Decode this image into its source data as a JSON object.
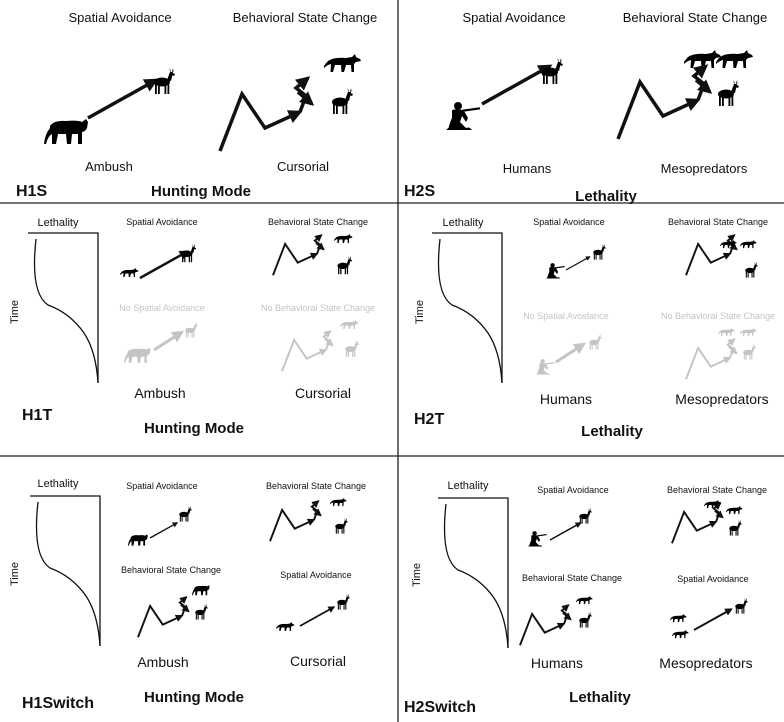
{
  "colors": {
    "ink": "#111111",
    "muted": "#c4c4c4",
    "divider": "#222222"
  },
  "panels": {
    "h1s": {
      "id": "H1S",
      "subtitle": "Hunting Mode",
      "left_heading": "Spatial Avoidance",
      "right_heading": "Behavioral State Change",
      "left_caption": "Ambush",
      "right_caption": "Cursorial"
    },
    "h2s": {
      "id": "H2S",
      "subtitle": "Lethality",
      "left_heading": "Spatial Avoidance",
      "right_heading": "Behavioral State Change",
      "left_caption": "Humans",
      "right_caption": "Mesopredators"
    },
    "h1t": {
      "id": "H1T",
      "subtitle": "Hunting Mode",
      "curve_top": "Lethality",
      "curve_side": "Time",
      "top_left": "Spatial Avoidance",
      "top_right": "Behavioral State Change",
      "bottom_left": "No Spatial Avoidance",
      "bottom_right": "No Behavioral State Change",
      "left_caption": "Ambush",
      "right_caption": "Cursorial"
    },
    "h2t": {
      "id": "H2T",
      "subtitle": "Lethality",
      "curve_top": "Lethality",
      "curve_side": "Time",
      "top_left": "Spatial Avoidance",
      "top_right": "Behavioral State Change",
      "bottom_left": "No Spatial Avoidance",
      "bottom_right": "No Behavioral State Change",
      "left_caption": "Humans",
      "right_caption": "Mesopredators"
    },
    "h1switch": {
      "id": "H1Switch",
      "subtitle": "Hunting Mode",
      "curve_top": "Lethality",
      "curve_side": "Time",
      "top_left": "Spatial Avoidance",
      "top_right": "Behavioral State Change",
      "bottom_left": "Behavioral State Change",
      "bottom_right": "Spatial Avoidance",
      "left_caption": "Ambush",
      "right_caption": "Cursorial"
    },
    "h2switch": {
      "id": "H2Switch",
      "subtitle": "Lethality",
      "curve_top": "Lethality",
      "curve_side": "Time",
      "top_left": "Spatial Avoidance",
      "top_right": "Behavioral State Change",
      "bottom_left": "Behavioral State Change",
      "bottom_right": "Spatial Avoidance",
      "left_caption": "Humans",
      "right_caption": "Mesopredators"
    }
  }
}
